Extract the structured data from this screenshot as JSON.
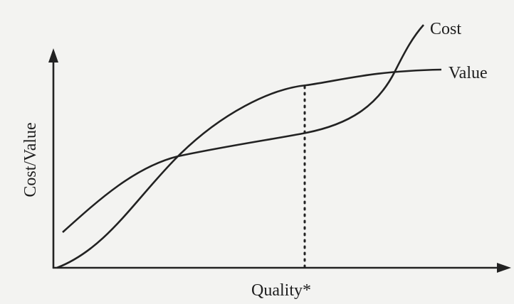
{
  "axes": {
    "y_label": "Cost/Value",
    "x_label": "Quality*"
  },
  "curves": [
    {
      "label": "Cost"
    },
    {
      "label": "Value"
    }
  ]
}
